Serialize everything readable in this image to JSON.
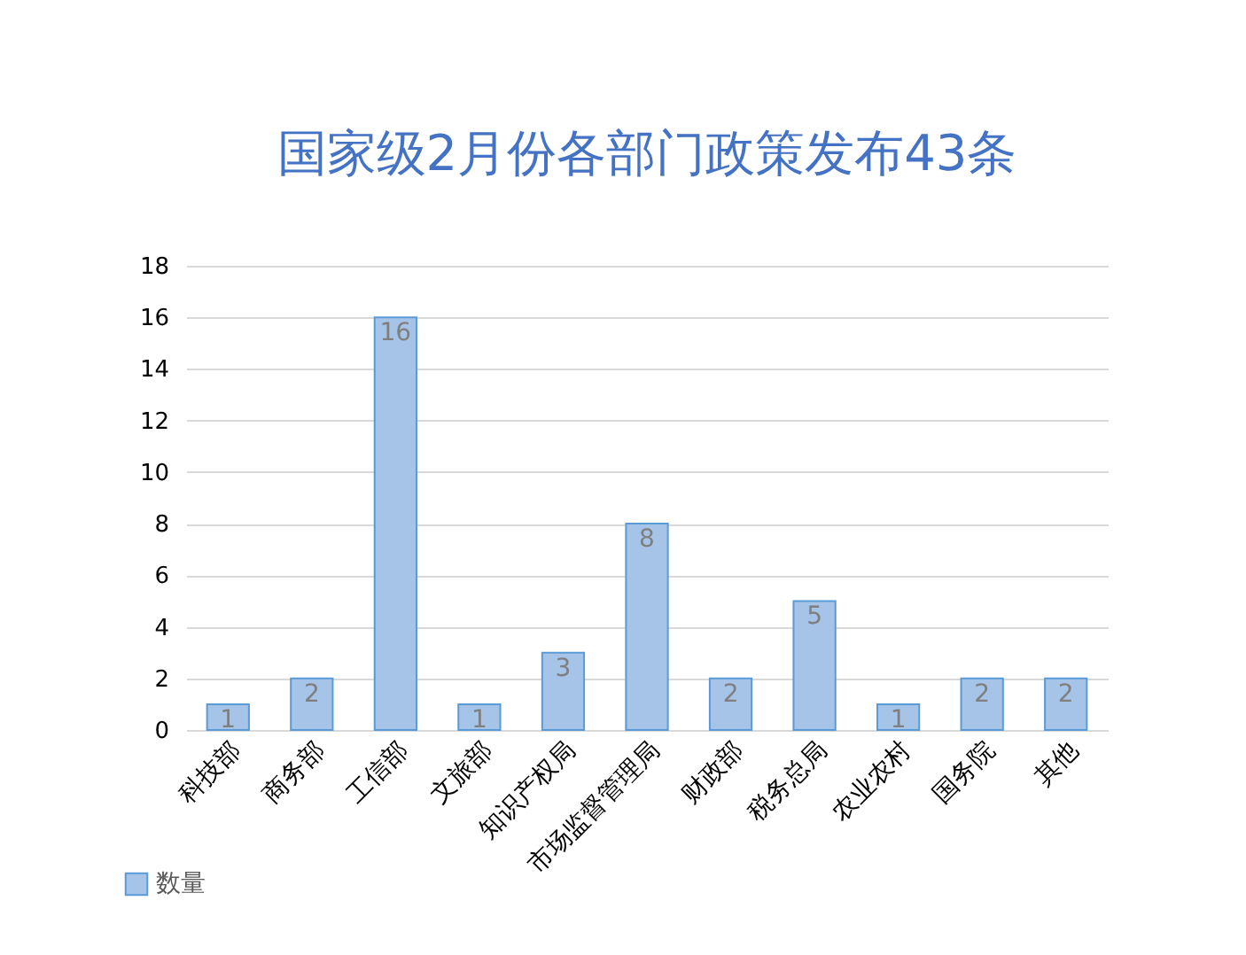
{
  "chart_data": {
    "type": "bar",
    "title": "国家级2月份各部门政策发布43条",
    "categories": [
      "科技部",
      "商务部",
      "工信部",
      "文旅部",
      "知识产权局",
      "市场监督管理局",
      "财政部",
      "税务总局",
      "农业农村",
      "国务院",
      "其他"
    ],
    "series": [
      {
        "name": "数量",
        "color": "#a6c3e8",
        "values": [
          1,
          2,
          16,
          1,
          3,
          8,
          2,
          5,
          1,
          2,
          2
        ]
      }
    ],
    "ylim": [
      0,
      18
    ],
    "yticks": [
      0,
      2,
      4,
      6,
      8,
      10,
      12,
      14,
      16,
      18
    ],
    "grid": "y",
    "legend": "bottom left",
    "data_labels": true
  }
}
